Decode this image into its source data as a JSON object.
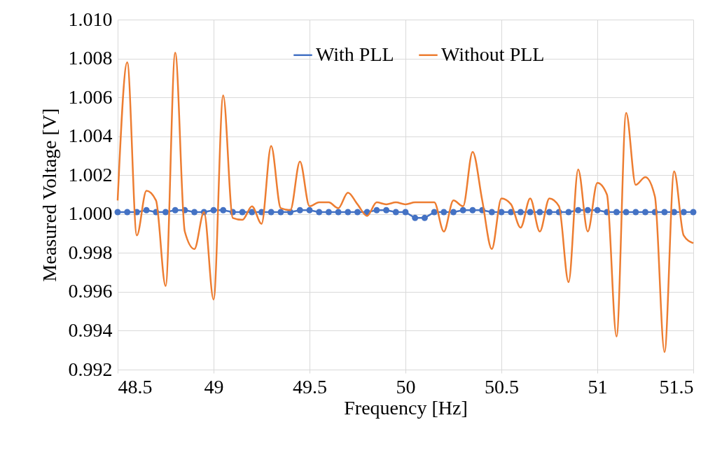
{
  "chart_data": {
    "type": "line",
    "xlabel": "Frequency [Hz]",
    "ylabel": "Measured Voltage [V]",
    "x": [
      48.5,
      48.55,
      48.6,
      48.65,
      48.7,
      48.75,
      48.8,
      48.85,
      48.9,
      48.95,
      49,
      49.05,
      49.1,
      49.15,
      49.2,
      49.25,
      49.3,
      49.35,
      49.4,
      49.45,
      49.5,
      49.55,
      49.6,
      49.65,
      49.7,
      49.75,
      49.8,
      49.85,
      49.9,
      49.95,
      50,
      50.05,
      50.1,
      50.15,
      50.2,
      50.25,
      50.3,
      50.35,
      50.4,
      50.45,
      50.5,
      50.55,
      50.6,
      50.65,
      50.7,
      50.75,
      50.8,
      50.85,
      50.9,
      50.95,
      51,
      51.05,
      51.1,
      51.15,
      51.2,
      51.25,
      51.3,
      51.35,
      51.4,
      51.45,
      51.5
    ],
    "series": [
      {
        "name": "With PLL",
        "color": "#4472c4",
        "marker": "circle",
        "values": [
          1.0001,
          1.0001,
          1.0001,
          1.0002,
          1.0001,
          1.0001,
          1.0002,
          1.0002,
          1.0001,
          1.0001,
          1.0002,
          1.0002,
          1.0001,
          1.0001,
          1.0001,
          1.0001,
          1.0001,
          1.0001,
          1.0001,
          1.0002,
          1.0002,
          1.0001,
          1.0001,
          1.0001,
          1.0001,
          1.0001,
          1.0001,
          1.0002,
          1.0002,
          1.0001,
          1.0001,
          0.9998,
          0.9998,
          1.0001,
          1.0001,
          1.0001,
          1.0002,
          1.0002,
          1.0002,
          1.0001,
          1.0001,
          1.0001,
          1.0001,
          1.0001,
          1.0001,
          1.0001,
          1.0001,
          1.0001,
          1.0002,
          1.0002,
          1.0002,
          1.0001,
          1.0001,
          1.0001,
          1.0001,
          1.0001,
          1.0001,
          1.0001,
          1.0001,
          1.0001,
          1.0001
        ]
      },
      {
        "name": "Without PLL",
        "color": "#ed7d31",
        "marker": "none",
        "values": [
          1.0007,
          1.0078,
          0.9989,
          1.0012,
          1.0007,
          0.9963,
          1.0083,
          0.9991,
          0.9982,
          1.0001,
          0.9956,
          1.0061,
          0.9998,
          0.9997,
          1.0004,
          0.9995,
          1.0035,
          1.0003,
          1.0002,
          1.0027,
          1.0004,
          1.0006,
          1.0006,
          1.0003,
          1.0011,
          1.0005,
          0.9999,
          1.0006,
          1.0005,
          1.0006,
          1.0005,
          1.0006,
          1.0006,
          1.0006,
          0.9991,
          1.0007,
          1.0004,
          1.0032,
          1.0007,
          0.9982,
          1.0008,
          1.0005,
          0.9993,
          1.0008,
          0.9991,
          1.0008,
          1.0004,
          0.9965,
          1.0023,
          0.9991,
          1.0016,
          1.001,
          0.9937,
          1.0052,
          1.0015,
          1.0019,
          1.0009,
          0.9929,
          1.0022,
          0.9989,
          0.9985
        ]
      }
    ],
    "xlim": [
      48.5,
      51.5
    ],
    "xticks": [
      48.5,
      49,
      49.5,
      50,
      50.5,
      51,
      51.5
    ],
    "ylim": [
      0.992,
      1.01
    ],
    "yticks": [
      {
        "value": 0.992,
        "label": "0.992"
      },
      {
        "value": 0.994,
        "label": "0.994"
      },
      {
        "value": 0.996,
        "label": "0.996"
      },
      {
        "value": 0.998,
        "label": "0.998"
      },
      {
        "value": 1.0,
        "label": "1.000"
      },
      {
        "value": 1.002,
        "label": "1.002"
      },
      {
        "value": 1.004,
        "label": "1.004"
      },
      {
        "value": 1.006,
        "label": "1.006"
      },
      {
        "value": 1.008,
        "label": "1.008"
      },
      {
        "value": 1.01,
        "label": "1.010"
      }
    ],
    "grid": true,
    "legend": "top"
  }
}
